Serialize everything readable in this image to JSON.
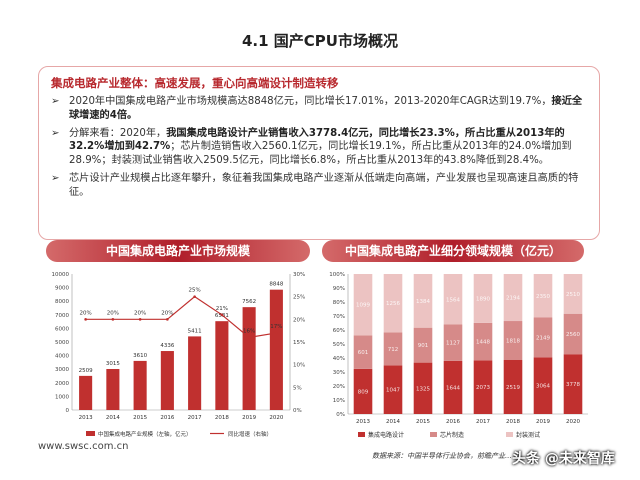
{
  "page": {
    "title": "4.1 国产CPU市场概况",
    "summary_heading": "集成电路产业整体：高速发展，重心向高端设计制造转移",
    "bullets": [
      {
        "parts": [
          {
            "t": "2020年中国集成电路产业市场规模高达8848亿元，同比增长17.01%，2013-2020年CAGR达到19.7%，",
            "b": false
          },
          {
            "t": "接近全球增速的4倍。",
            "b": true
          }
        ]
      },
      {
        "parts": [
          {
            "t": "分解来看：2020年，",
            "b": false
          },
          {
            "t": "我国集成电路设计产业销售收入3778.4亿元，同比增长23.3%，所占比重从2013年的32.2%增加到42.7%",
            "b": true
          },
          {
            "t": "；芯片制造销售收入2560.1亿元，同比增长19.1%，所占比重从2013年的24.0%增加到28.9%；封装测试业销售收入2509.5亿元，同比增长6.8%，所占比重从2013年的43.8%降低到28.4%。",
            "b": false
          }
        ]
      },
      {
        "parts": [
          {
            "t": "芯片设计产业规模占比逐年攀升，象征着我国集成电路产业逐渐从低端走向高端，产业发展也呈现高速且高质的特征。",
            "b": false
          }
        ]
      }
    ],
    "footer_url": "www.swsc.com.cn",
    "footer_source": "数据来源：中国半导体行业协会，前瞻产业...",
    "watermark": "头条 @未来智库"
  },
  "chart_data": [
    {
      "type": "bar",
      "title": "中国集成电路产业市场规模",
      "categories": [
        "2013",
        "2014",
        "2015",
        "2016",
        "2017",
        "2018",
        "2019",
        "2020"
      ],
      "series": [
        {
          "name": "中国集成电路产业规模（左轴，亿元）",
          "values": [
            2509,
            3015,
            3610,
            4336,
            5411,
            6531,
            7562,
            8848
          ],
          "axis": "left",
          "labels": [
            "2509",
            "3015",
            "3610",
            "4336",
            "5411",
            "6531",
            "7562",
            "8848"
          ]
        },
        {
          "name": "同比增速（右轴）",
          "type": "line",
          "values": [
            20,
            20,
            20,
            20,
            25,
            21,
            16,
            17
          ],
          "axis": "right",
          "labels": [
            "20%",
            "20%",
            "20%",
            "20%",
            "25%",
            "21%",
            "16%",
            "17%"
          ]
        }
      ],
      "y_left": {
        "ticks": [
          "0",
          "1000",
          "2000",
          "3000",
          "4000",
          "5000",
          "6000",
          "7000",
          "8000",
          "9000",
          "10000"
        ],
        "range": [
          0,
          10000
        ]
      },
      "y_right": {
        "ticks": [
          "0%",
          "5%",
          "10%",
          "15%",
          "20%",
          "25%",
          "30%"
        ],
        "range": [
          0,
          30
        ]
      },
      "colors": {
        "bar": "#c0302f",
        "line": "#c0302f"
      },
      "legend": "bottom"
    },
    {
      "type": "bar",
      "stacked": "percent",
      "title": "中国集成电路产业细分领域规模（亿元）",
      "categories": [
        "2013",
        "2014",
        "2015",
        "2016",
        "2017",
        "2018",
        "2019",
        "2020"
      ],
      "series": [
        {
          "name": "集成电路设计",
          "values": [
            809,
            1047,
            1325,
            1644,
            2073,
            2519,
            3064,
            3778
          ],
          "color": "#c0302f"
        },
        {
          "name": "芯片制造",
          "values": [
            601,
            712,
            901,
            1127,
            1448,
            1818,
            2149,
            2560
          ],
          "color": "#d68a89"
        },
        {
          "name": "封装测试",
          "values": [
            1099,
            1256,
            1384,
            1564,
            1890,
            2194,
            2350,
            2510
          ],
          "color": "#ecc3c2"
        }
      ],
      "y": {
        "ticks": [
          "0%",
          "10%",
          "20%",
          "30%",
          "40%",
          "50%",
          "60%",
          "70%",
          "80%",
          "90%",
          "100%"
        ],
        "range": [
          0,
          100
        ]
      },
      "legend": "bottom"
    }
  ]
}
